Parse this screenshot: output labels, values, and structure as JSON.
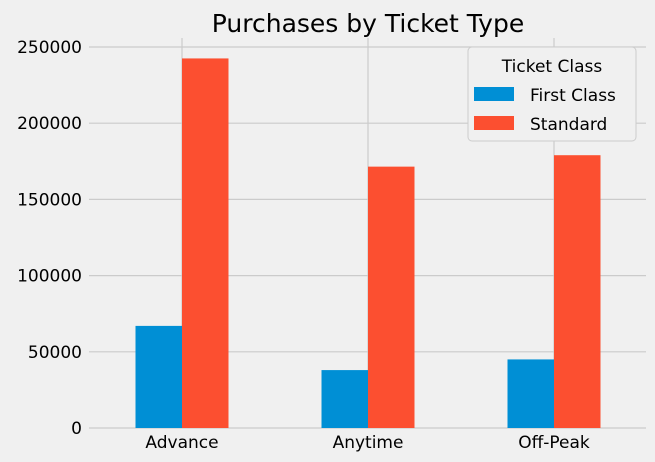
{
  "chart_data": {
    "type": "bar",
    "title": "Purchases by Ticket Type",
    "xlabel": "",
    "ylabel": "",
    "categories": [
      "Advance",
      "Anytime",
      "Off-Peak"
    ],
    "series": [
      {
        "name": "First Class",
        "values": [
          67000,
          38000,
          45000
        ],
        "color": "#008fd5"
      },
      {
        "name": "Standard",
        "values": [
          242500,
          171500,
          179000
        ],
        "color": "#fc4f30"
      }
    ],
    "ylim": [
      0,
      250000
    ],
    "yticks": [
      "0",
      "50000",
      "100000",
      "150000",
      "200000",
      "250000"
    ],
    "grid": true,
    "legend": {
      "title": "Ticket Class",
      "placement": "top-right"
    }
  },
  "colors": {
    "background": "#f0f0f0",
    "grid": "#cbcbcb"
  }
}
